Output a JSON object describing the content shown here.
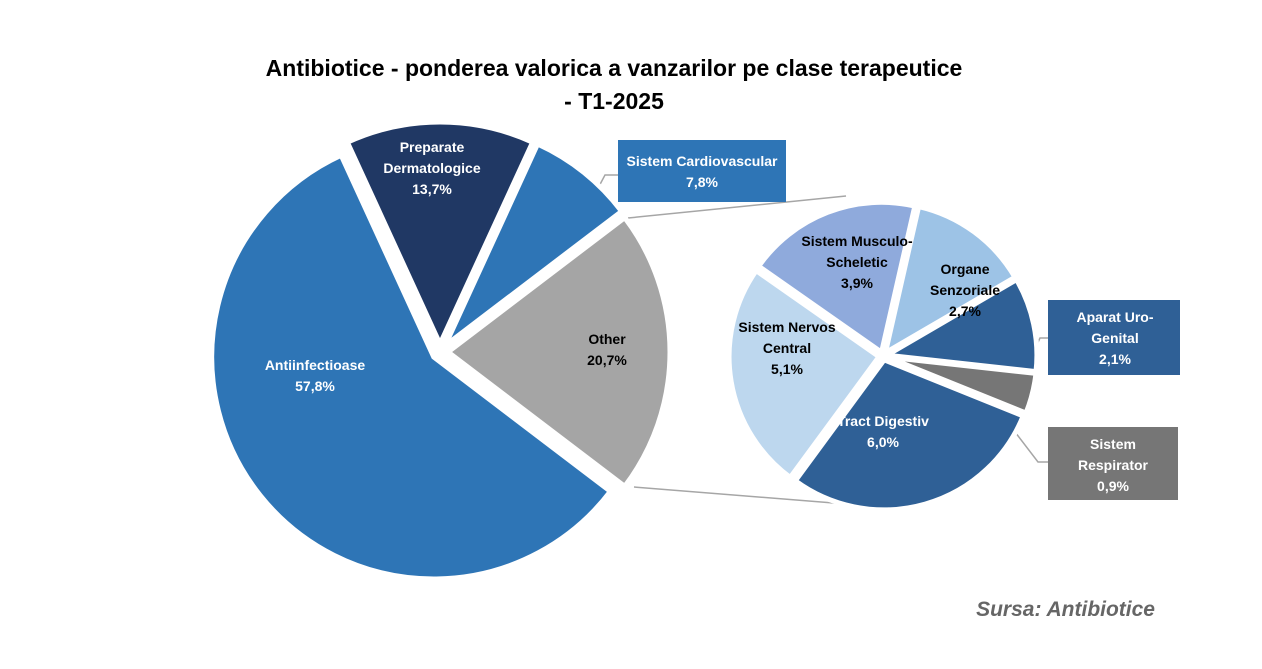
{
  "chart_data": {
    "type": "pie-of-pie",
    "title": "Antibiotice - ponderea valorica a vanzarilor pe clase terapeutice\n- T1-2025",
    "source": "Sursa: Antibiotice",
    "categories": [
      "Antiinfectioase",
      "Preparate\nDermatologice",
      "Sistem Cardiovascular",
      "Other"
    ],
    "values": [
      57.8,
      13.7,
      7.8,
      20.7
    ],
    "value_labels": [
      "57,8%",
      "13,7%",
      "7,8%",
      "20,7%"
    ],
    "colors": [
      "#2e75b6",
      "#203864",
      "#2e75b6",
      "#a5a5a5"
    ],
    "other": {
      "categories": [
        "Sistem Musculo-\nScheletic",
        "Organe\nSenzoriale",
        "Aparat Uro-\nGenital",
        "Sistem\nRespirator",
        "Tract Digestiv",
        "Sistem Nervos\nCentral"
      ],
      "values": [
        3.9,
        2.7,
        2.1,
        0.9,
        6.0,
        5.1
      ],
      "value_labels": [
        "3,9%",
        "2,7%",
        "2,1%",
        "0,9%",
        "6,0%",
        "5,1%"
      ],
      "colors": [
        "#8faadc",
        "#9dc3e6",
        "#2f6096",
        "#767676",
        "#2f6096",
        "#bdd7ee"
      ]
    }
  }
}
